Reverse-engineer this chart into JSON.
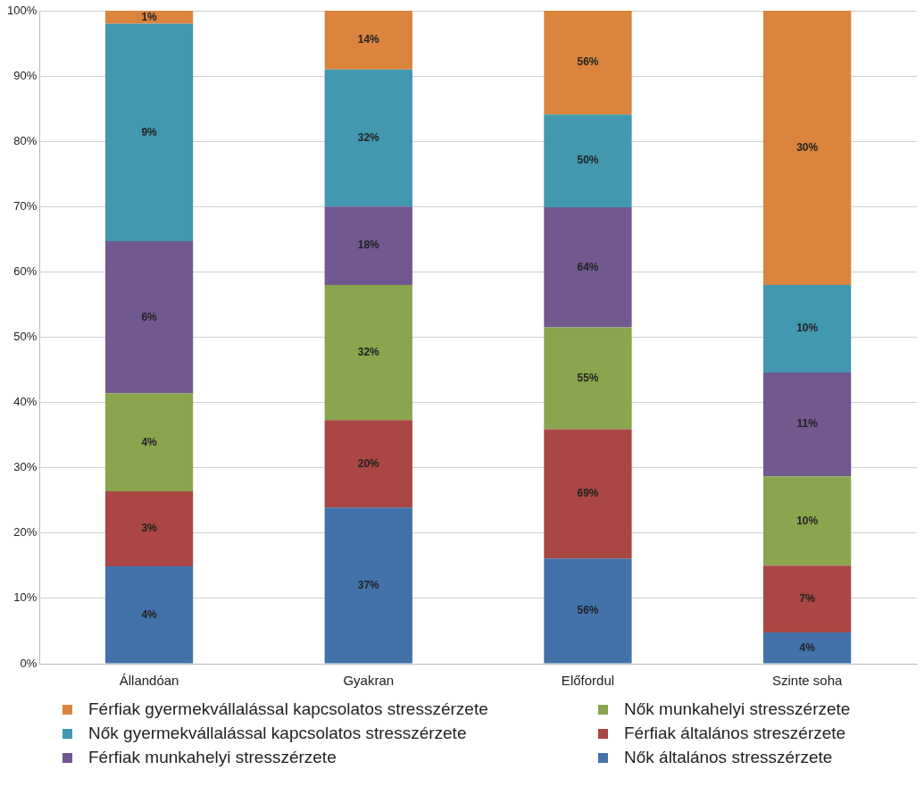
{
  "chart_data": {
    "type": "bar",
    "stacked": true,
    "categories": [
      "Állandóan",
      "Gyakran",
      "Előfordul",
      "Szinte soha"
    ],
    "series": [
      {
        "name": "Nők általános stresszérzete",
        "color": "#4372aa",
        "values": [
          14.9,
          23.9,
          16.1,
          4.8
        ]
      },
      {
        "name": "Férfiak általános streszérzete",
        "color": "#aa4644",
        "values": [
          11.5,
          13.4,
          19.8,
          10.2
        ]
      },
      {
        "name": "Nők munkahelyi stresszérzete",
        "color": "#89a54e",
        "values": [
          15,
          20.7,
          15.6,
          13.7
        ]
      },
      {
        "name": "Férfiak munkahelyi stresszérzete",
        "color": "#71588f",
        "values": [
          23.3,
          12,
          18.4,
          15.9
        ]
      },
      {
        "name": "Nők gyermekvállalással kapcsolatos stresszérzete",
        "color": "#4198af",
        "values": [
          33.3,
          21,
          14.2,
          13.4
        ]
      },
      {
        "name": "Férfiak gyermekvállalással kapcsolatos stresszérzete",
        "color": "#db843d",
        "values": [
          2,
          9,
          15.9,
          42
        ]
      }
    ],
    "annotations": [
      "4%",
      "3%",
      "4%",
      "6%",
      "9%",
      "1%",
      "37%",
      "20%",
      "32%",
      "18%",
      "32%",
      "14%",
      "56%",
      "69%",
      "55%",
      "64%",
      "50%",
      "56%",
      "4%",
      "7%",
      "10%",
      "11%",
      "10%",
      "30%"
    ],
    "ylim": [
      0,
      100
    ],
    "yticks": [
      {
        "value": 0,
        "label": "0%"
      },
      {
        "value": 10,
        "label": "10%"
      },
      {
        "value": 20,
        "label": "20%"
      },
      {
        "value": 30,
        "label": "30%"
      },
      {
        "value": 40,
        "label": "40%"
      },
      {
        "value": 50,
        "label": "50%"
      },
      {
        "value": 60,
        "label": "60%"
      },
      {
        "value": 70,
        "label": "70%"
      },
      {
        "value": 80,
        "label": "80%"
      },
      {
        "value": 90,
        "label": "90%"
      },
      {
        "value": 100,
        "label": "100%"
      }
    ],
    "grid": "y",
    "legend": "bottom"
  }
}
